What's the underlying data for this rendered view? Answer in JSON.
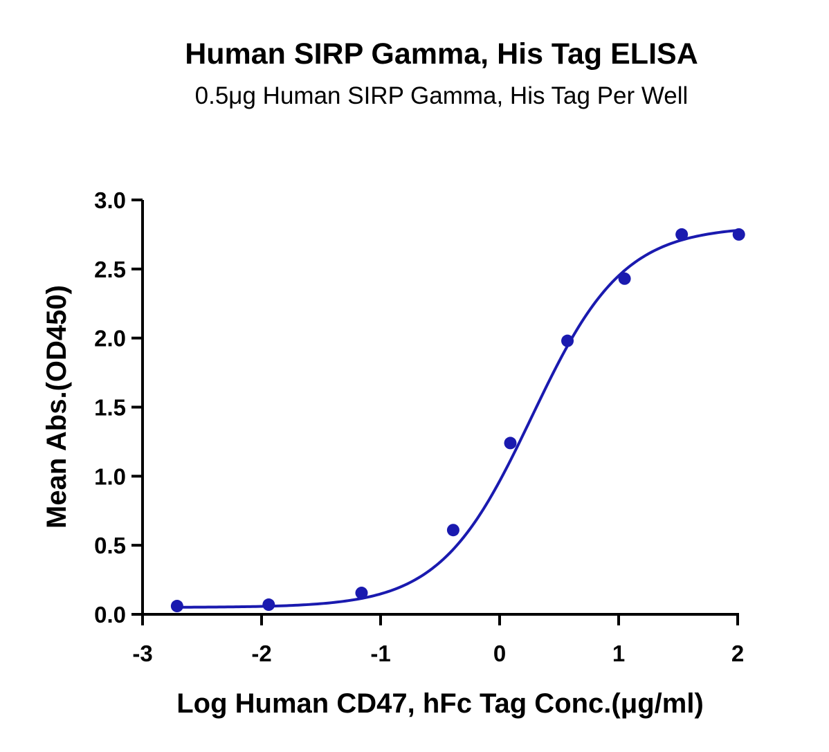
{
  "colors": {
    "series": "#1a1aaf",
    "axis": "#000000",
    "text": "#000000"
  },
  "chart_data": {
    "type": "scatter",
    "title": "Human SIRP Gamma, His Tag ELISA",
    "subtitle": "0.5μg Human SIRP Gamma, His Tag Per Well",
    "xlabel": "Log Human CD47, hFc Tag Conc.(μg/ml)",
    "ylabel": "Mean Abs.(OD450)",
    "xlim": [
      -3,
      2
    ],
    "ylim": [
      0,
      3
    ],
    "x_ticks": [
      -3,
      -2,
      -1,
      0,
      1,
      2
    ],
    "x_tick_labels": [
      "-3",
      "-2",
      "-1",
      "0",
      "1",
      "2"
    ],
    "y_ticks": [
      0,
      0.5,
      1,
      1.5,
      2,
      2.5,
      3
    ],
    "y_tick_labels": [
      "0.0",
      "0.5",
      "1.0",
      "1.5",
      "2.0",
      "2.5",
      "3.0"
    ],
    "grid": false,
    "legend": "none",
    "series": [
      {
        "x": [
          -2.71,
          -1.94,
          -1.16,
          -0.39,
          0.09,
          0.57,
          1.05,
          1.53,
          2.01
        ],
        "y": [
          0.06,
          0.07,
          0.155,
          0.61,
          1.24,
          1.98,
          2.43,
          2.75,
          2.75
        ]
      }
    ],
    "fit": {
      "model": "4PL",
      "bottom": 0.05,
      "top": 2.81,
      "log_ec50": 0.27,
      "hill_slope": 1.13
    }
  }
}
